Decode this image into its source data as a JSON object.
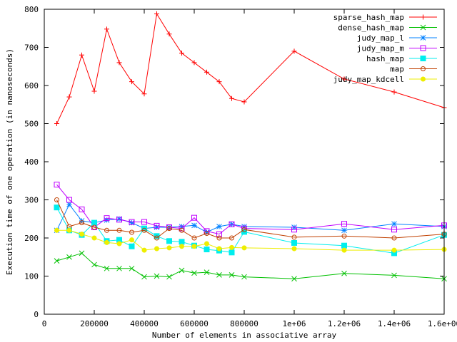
{
  "chart_data": {
    "type": "line",
    "title": "",
    "xlabel": "Number of elements in associative array",
    "ylabel": "Execution time of one operation (in nanoseconds)",
    "xlim": [
      0,
      1600000
    ],
    "ylim": [
      0,
      800
    ],
    "xticks": [
      0,
      200000,
      400000,
      600000,
      800000,
      1000000,
      1200000,
      1400000,
      1600000
    ],
    "xtick_labels": [
      "0",
      "200000",
      "400000",
      "600000",
      "800000",
      "1e+06",
      "1.2e+06",
      "1.4e+06",
      "1.6e+06"
    ],
    "yticks": [
      0,
      100,
      200,
      300,
      400,
      500,
      600,
      700,
      800
    ],
    "ytick_labels": [
      "0",
      "100",
      "200",
      "300",
      "400",
      "500",
      "600",
      "700",
      "800"
    ],
    "grid": false,
    "legend_position": "top-right",
    "x": [
      50000,
      100000,
      150000,
      200000,
      250000,
      300000,
      350000,
      400000,
      450000,
      500000,
      550000,
      600000,
      650000,
      700000,
      750000,
      800000,
      1000000,
      1200000,
      1400000,
      1600000
    ],
    "series": [
      {
        "name": "sparse_hash_map",
        "color": "#ff0000",
        "marker": "plus",
        "values": [
          500,
          570,
          680,
          585,
          748,
          660,
          610,
          578,
          788,
          735,
          685,
          660,
          635,
          610,
          566,
          557,
          690,
          617,
          583,
          542
        ]
      },
      {
        "name": "dense_hash_map",
        "color": "#00c000",
        "marker": "cross",
        "values": [
          140,
          150,
          160,
          130,
          120,
          120,
          120,
          98,
          100,
          98,
          115,
          108,
          110,
          103,
          103,
          98,
          93,
          107,
          102,
          93
        ]
      },
      {
        "name": "judy_map_l",
        "color": "#0080ff",
        "marker": "star",
        "values": [
          220,
          288,
          245,
          240,
          247,
          250,
          240,
          225,
          228,
          228,
          230,
          233,
          215,
          230,
          236,
          230,
          228,
          220,
          237,
          230
        ]
      },
      {
        "name": "judy_map_m",
        "color": "#c000ff",
        "marker": "box",
        "values": [
          340,
          300,
          275,
          228,
          252,
          248,
          242,
          242,
          232,
          228,
          225,
          253,
          218,
          210,
          236,
          225,
          222,
          237,
          222,
          233
        ]
      },
      {
        "name": "hash_map",
        "color": "#00eeee",
        "marker": "filled-box",
        "values": [
          280,
          220,
          208,
          240,
          192,
          195,
          178,
          225,
          205,
          192,
          190,
          180,
          170,
          167,
          162,
          216,
          187,
          180,
          160,
          208
        ]
      },
      {
        "name": "map",
        "color": "#c04000",
        "marker": "circle",
        "values": [
          300,
          230,
          240,
          228,
          220,
          220,
          215,
          220,
          200,
          225,
          220,
          200,
          212,
          200,
          200,
          222,
          202,
          205,
          200,
          210
        ]
      },
      {
        "name": "judy_map_kdcell",
        "color": "#eeee00",
        "marker": "filled-circle",
        "values": [
          220,
          220,
          210,
          200,
          188,
          185,
          195,
          168,
          172,
          174,
          178,
          178,
          185,
          172,
          175,
          174,
          172,
          168,
          168,
          170
        ]
      }
    ]
  }
}
